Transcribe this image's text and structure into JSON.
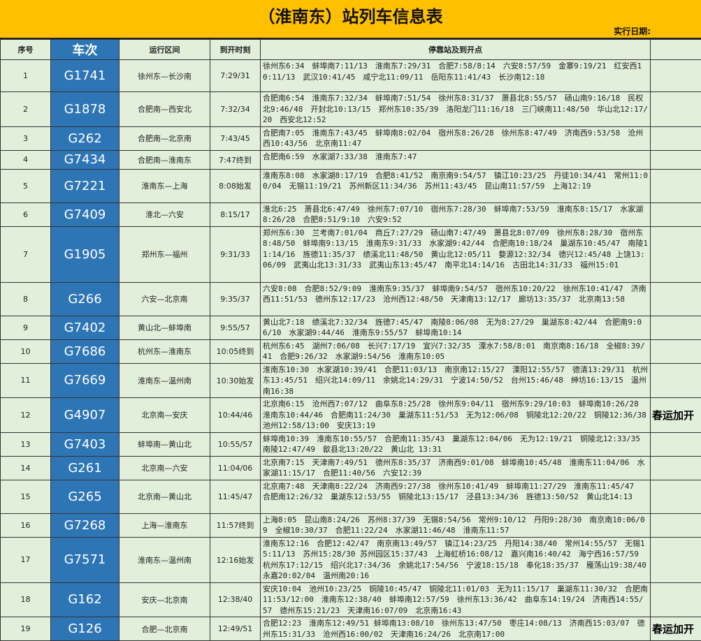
{
  "header": {
    "title": "（淮南东）站列车信息表",
    "date_label": "实行日期:"
  },
  "columns": {
    "no": "序号",
    "train": "车次",
    "route": "运行区间",
    "time": "到开时刻",
    "stops": "停靠站及到开点",
    "remark": ""
  },
  "colors": {
    "title_bg": "#FFC000",
    "table_bg": "#E2EFDA",
    "train_bg": "#2E75B6"
  },
  "rows": [
    {
      "no": "1",
      "train": "G1741",
      "route": "徐州东—长沙南",
      "time": "7:29/31",
      "stops": "徐州东6:34　蚌埠南7:11/13　淮南东7:29/31　合肥7:58/8:14　六安8:57/59　金寨9:19/21　红安西10:11/13　武汉10:41/45　咸宁北11:09/11　岳阳东11:41/43　长沙南12:18",
      "remark": ""
    },
    {
      "no": "2",
      "train": "G1878",
      "route": "合肥南—西安北",
      "time": "7:32/34",
      "stops": "合肥南6:54　淮南东7:32/34　蚌埠南7:51/54　徐州东8:31/37　萧县北8:55/57　砀山南9:16/18　民权北9:46/48　开封北10:13/15　郑州东10:35/39　洛阳龙门11:16/18　三门峡南11:48/50　华山北12:17/20　西安北12:52",
      "remark": ""
    },
    {
      "no": "3",
      "train": "G262",
      "route": "合肥南—北京南",
      "time": "7:43/45",
      "stops": "合肥南7:05　淮南东7:43/45　蚌埠南8:02/04　宿州东8:26/28　徐州东8:47/49　济南西9:53/58　沧州西10:43/56　北京南11:47",
      "remark": ""
    },
    {
      "no": "4",
      "train": "G7434",
      "route": "合肥南—淮南东",
      "time": "7:47终到",
      "stops": "合肥南6:59　水家湖7:33/38　淮南东7:47",
      "remark": ""
    },
    {
      "no": "5",
      "train": "G7221",
      "route": "淮南东—上海",
      "time": "8:08始发",
      "stops": "淮南东8:08　水家湖8:17/19　合肥8:41/52　南京南9:54/57　镇江10:23/25　丹徒10:34/41　常州11:00/04　无锡11:19/21　苏州新区11:34/36　苏州11:43/45　昆山南11:57/59　上海12:19",
      "remark": ""
    },
    {
      "no": "6",
      "train": "G7409",
      "route": "淮北—六安",
      "time": "8:15/17",
      "stops": "淮北6:25　萧县北6:47/49　徐州东7:07/10　宿州东7:28/30　蚌埠南7:53/59　淮南东8:15/17　水家湖8:26/28　合肥8:51/9:10　六安9:52",
      "remark": ""
    },
    {
      "no": "7",
      "train": "G1905",
      "route": "郑州东—福州",
      "time": "9:31/33",
      "stops": "郑州东6:30　兰考南7:01/04　商丘7:27/29　砀山南7:47/49　萧县北8:07/09　徐州东8:28/30　宿州东8:48/50　蚌埠南9:13/15　淮南东9:31/33　水家湖9:42/44　合肥南10:18/24　巢湖东10:45/47　南陵11:14/16　旌德11:35/37　绩溪北11:48/50　黄山北12:05/11　婺源12:32/34　德兴12:45/48 上饶13:06/09　武夷山北13:31/33　武夷山东13:45/47　南平北14:14/16　古田北14:31/33　福州15:01",
      "remark": ""
    },
    {
      "no": "8",
      "train": "G266",
      "route": "六安—北京南",
      "time": "9:35/37",
      "stops": "六安8:08　合肥8:52/9:09　淮南东9:35/37　蚌埠南9:54/57　宿州东10:20/22　徐州东10:41/47　济南西11:51/53　德州东12:17/23　沧州西12:48/50　天津南13:12/17　廊坊13:35/37　北京南13:58",
      "remark": ""
    },
    {
      "no": "9",
      "train": "G7402",
      "route": "黄山北—蚌埠南",
      "time": "9:55/57",
      "stops": "黄山北7:18　绩溪北7:32/34　旌德7:45/47　南陵8:06/08　无为8:27/29　巢湖东8:42/44　合肥南9:06/10　水家湖9:44/46　淮南东9:55/57　蚌埠南10:14",
      "remark": ""
    },
    {
      "no": "10",
      "train": "G7686",
      "route": "杭州东—淮南东",
      "time": "10:05终到",
      "stops": "杭州东6:45　湖州7:06/08　长兴7:17/19　宜兴7:32/35　溧水7:58/8:01　南京南8:16/18　全椒8:39/41　合肥9:26/32　水家湖9:54/56　淮南东10:05",
      "remark": ""
    },
    {
      "no": "11",
      "train": "G7669",
      "route": "淮南东—温州南",
      "time": "10:30始发",
      "stops": "淮南东10:30　水家湖10:39/41　合肥11:03/13　南京南12:15/27　溧阳12:55/57　德清13:29/31　杭州东13:45/51　绍兴北14:09/11　余姚北14:29/31　宁波14:50/52　台州15:46/48　绅坊16:13/15　温州南16:38",
      "remark": ""
    },
    {
      "no": "12",
      "train": "G4907",
      "route": "北京南—安庆",
      "time": "10:44/46",
      "stops": "北京南6:15　沧州西7:07/12　曲阜东8:25/28　徐州东9:04/11　宿州东9:29/10:03　蚌埠南10:26/28　淮南东10:44/46　合肥南11:24/30　巢湖东11:51/53　无为12:06/08　铜陵北12:20/22　铜陵12:36/38　池州12:58/13:00　安庆13:19",
      "remark": "春运加开"
    },
    {
      "no": "13",
      "train": "G7403",
      "route": "蚌埠南—黄山北",
      "time": "10:55/57",
      "stops": "蚌埠南10:39　淮南东10:55/57　合肥南11:35/43　巢湖东12:04/06　无为12:19/21　铜陵北12:33/35　南陵12:47/49　歙县北13:20/22　黄山北 13:31",
      "remark": ""
    },
    {
      "no": "14",
      "train": "G261",
      "route": "北京南—六安",
      "time": "11:04/06",
      "stops": "北京南7:15　天津南7:49/51　德州东8:35/37　济南西9:01/08　蚌埠南10:45/48　淮南东11:04/06　水家湖11:15/17　合肥11:40/56　六安12:39",
      "remark": ""
    },
    {
      "no": "15",
      "train": "G265",
      "route": "北京南—黄山北",
      "time": "11:45/47",
      "stops": "北京南7:48　天津南8:22/24　济南西9:27/38　徐州东10:41/49　蚌埠南11:27/29　淮南东11:45/47　合肥南12:26/32　巢湖东12:53/55　铜陵北13:15/17　泾县13:34/36　旌德13:50/52　黄山北14:13",
      "remark": ""
    },
    {
      "no": "16",
      "train": "G7268",
      "route": "上海—淮南东",
      "time": "11:57终到",
      "stops": "上海8:05　昆山南8:24/26　苏州8:37/39　无锡8:54/56　常州9:10/12　丹阳9:28/30　南京南10:06/09　全椒10:30/37　合肥11:22/24　水家湖11:46/48　淮南东11:57",
      "remark": ""
    },
    {
      "no": "17",
      "train": "G7571",
      "route": "淮南东—温州南",
      "time": "12:16始发",
      "stops": "淮南东12:16　合肥12:42/47　南京南13:49/57　镇江14:23/25　丹阳14:38/40　常州14:55/57　无锡15:11/13　苏州15:28/30 苏州园区15:37/43　上海虹桥16:08/12　嘉兴南16:40/42　海宁西16:57/59　杭州东17:12/15　绍兴北17:34/36　余姚北17:54/56　宁波18:15/18　奉化18:35/37　雁荡山19:38/40　永嘉20:02/04　温州南20:16",
      "remark": ""
    },
    {
      "no": "18",
      "train": "G162",
      "route": "安庆—北京南",
      "time": "12:38/40",
      "stops": "安庆10:04　池州10:23/25　铜陵10:45/47　铜陵北11:01/03　无为11:15/17　巢湖东11:30/32　合肥南11:53/12:00　淮南东12:38/40　蚌埠南12:57/59　徐州东13:36/42　曲阜东14:19/24　济南西14:55/57　德州东15:21/23　天津南16:07/09　北京南16:43",
      "remark": ""
    },
    {
      "no": "19",
      "train": "G126",
      "route": "合肥—北京南",
      "time": "12:49/51",
      "stops": "合肥12:23　淮南东12:49/51 蚌埠南13:08/10　徐州东13:47/50　枣庄14:08/13　济南西15:03/07　德州东15:31/33　沧州西16:00/02　天津南16:24/26　北京南17:00",
      "remark": "春运加开"
    }
  ]
}
